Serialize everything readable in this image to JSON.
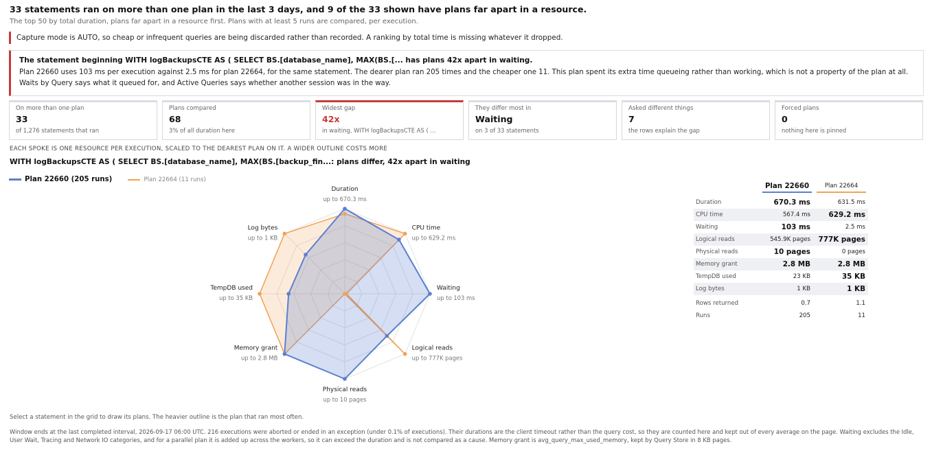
{
  "header": {
    "headline": "33 statements ran on more than one plan in the last 3 days, and 9 of the 33 shown have plans far apart in a resource.",
    "subline": "The top 50 by total duration, plans far apart in a resource first. Plans with at least 5 runs are compared, per execution."
  },
  "capture_note": "Capture mode is AUTO, so cheap or infrequent queries are being discarded rather than recorded. A ranking by total time is missing whatever it dropped.",
  "finding": {
    "title": "The statement beginning WITH logBackupsCTE AS ( SELECT BS.[database_name], MAX(BS.[... has plans 42x apart in waiting.",
    "body": "Plan 22660 uses 103 ms per execution against 2.5 ms for plan 22664, for the same statement. The dearer plan ran 205 times and the cheaper one 11. This plan spent its extra time queueing rather than working, which is not a property of the plan at all. Waits by Query says what it queued for, and Active Queries says whether another session was in the way."
  },
  "cards": [
    {
      "label": "On more than one plan",
      "value": "33",
      "sub": "of 1,276 statements that ran",
      "alert": false
    },
    {
      "label": "Plans compared",
      "value": "68",
      "sub": "3% of all duration here",
      "alert": false
    },
    {
      "label": "Widest gap",
      "value": "42x",
      "sub": "in waiting, WITH logBackupsCTE AS ( ...",
      "alert": true
    },
    {
      "label": "They differ most in",
      "value": "Waiting",
      "sub": "on 3 of 33 statements",
      "alert": false
    },
    {
      "label": "Asked different things",
      "value": "7",
      "sub": "the rows explain the gap",
      "alert": false
    },
    {
      "label": "Forced plans",
      "value": "0",
      "sub": "nothing here is pinned",
      "alert": false
    }
  ],
  "spoke_caption": "EACH SPOKE IS ONE RESOURCE PER EXECUTION, SCALED TO THE DEAREST PLAN ON IT. A WIDER OUTLINE COSTS MORE",
  "chart_title": "WITH logBackupsCTE AS ( SELECT BS.[database_name], MAX(BS.[backup_fin...: plans differ, 42x apart in waiting",
  "colors": {
    "plan_a": "#5b7fcf",
    "plan_b": "#f0a255",
    "alert": "#c83a3a"
  },
  "chart_data": {
    "type": "radar",
    "axes": [
      {
        "name": "Duration",
        "scale_label": "up to 670.3 ms"
      },
      {
        "name": "CPU time",
        "scale_label": "up to 629.2 ms"
      },
      {
        "name": "Waiting",
        "scale_label": "up to 103 ms"
      },
      {
        "name": "Logical reads",
        "scale_label": "up to 777K pages"
      },
      {
        "name": "Physical reads",
        "scale_label": "up to 10 pages"
      },
      {
        "name": "Memory grant",
        "scale_label": "up to 2.8 MB"
      },
      {
        "name": "TempDB used",
        "scale_label": "up to 35 KB"
      },
      {
        "name": "Log bytes",
        "scale_label": "up to 1 KB"
      }
    ],
    "series": [
      {
        "name": "Plan 22660 (205 runs)",
        "values": [
          1.0,
          0.9,
          1.0,
          0.7,
          1.0,
          1.0,
          0.66,
          0.65
        ]
      },
      {
        "name": "Plan 22664 (11 runs)",
        "values": [
          0.94,
          1.0,
          0.02,
          1.0,
          0.0,
          1.0,
          1.0,
          1.0
        ]
      }
    ],
    "rmax": 1.0
  },
  "comparison": {
    "plan_a": "Plan 22660",
    "plan_b": "Plan 22664",
    "rows": [
      {
        "name": "Duration",
        "a": "670.3 ms",
        "b": "631.5 ms",
        "bold": "a",
        "shade": false
      },
      {
        "name": "CPU time",
        "a": "567.4 ms",
        "b": "629.2 ms",
        "bold": "b",
        "shade": true
      },
      {
        "name": "Waiting",
        "a": "103 ms",
        "b": "2.5 ms",
        "bold": "a",
        "shade": false
      },
      {
        "name": "Logical reads",
        "a": "545.9K pages",
        "b": "777K pages",
        "bold": "b",
        "shade": true
      },
      {
        "name": "Physical reads",
        "a": "10 pages",
        "b": "0 pages",
        "bold": "a",
        "shade": false
      },
      {
        "name": "Memory grant",
        "a": "2.8 MB",
        "b": "2.8 MB",
        "bold": "both",
        "shade": true
      },
      {
        "name": "TempDB used",
        "a": "23 KB",
        "b": "35 KB",
        "bold": "b",
        "shade": false
      },
      {
        "name": "Log bytes",
        "a": "1 KB",
        "b": "1 KB",
        "bold": "b",
        "shade": true
      }
    ],
    "extra_rows": [
      {
        "name": "Rows returned",
        "a": "0.7",
        "b": "1.1"
      },
      {
        "name": "Runs",
        "a": "205",
        "b": "11"
      }
    ]
  },
  "select_note": "Select a statement in the grid to draw its plans. The heavier outline is the plan that ran most often.",
  "footnote": "Window ends at the last completed interval, 2026-09-17 06:00 UTC.    216 executions were aborted or ended in an exception (under 0.1% of executions). Their durations are the client timeout rather than the query cost, so they are counted here and kept out of every average on the page.    Waiting excludes the Idle, User Wait, Tracing and Network IO categories, and for a parallel plan it is added up across the workers, so it can exceed the duration and is not compared as a cause. Memory grant is avg_query_max_used_memory, kept by Query Store in 8 KB pages."
}
